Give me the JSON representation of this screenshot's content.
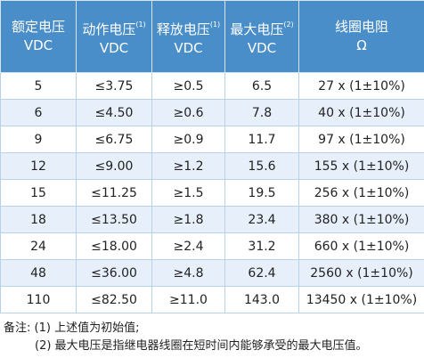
{
  "table": {
    "header": [
      {
        "label": "额定电压",
        "unit": "VDC"
      },
      {
        "label": "动作电压",
        "note": "(1)",
        "unit": "VDC"
      },
      {
        "label": "释放电压",
        "note": "(1)",
        "unit": "VDC"
      },
      {
        "label": "最大电压",
        "note": "(2)",
        "unit": "VDC"
      },
      {
        "label": "线圈电阻",
        "unit": "Ω"
      }
    ],
    "rows": [
      [
        "5",
        "≤3.75",
        "≥0.5",
        "6.5",
        "27 x (1±10%)"
      ],
      [
        "6",
        "≤4.50",
        "≥0.6",
        "7.8",
        "40 x (1±10%)"
      ],
      [
        "9",
        "≤6.75",
        "≥0.9",
        "11.7",
        "97 x (1±10%)"
      ],
      [
        "12",
        "≤9.00",
        "≥1.2",
        "15.6",
        "155 x (1±10%)"
      ],
      [
        "15",
        "≤11.25",
        "≥1.5",
        "19.5",
        "256 x (1±10%)"
      ],
      [
        "18",
        "≤13.50",
        "≥1.8",
        "23.4",
        "380 x (1±10%)"
      ],
      [
        "24",
        "≤18.00",
        "≥2.4",
        "31.2",
        "660 x (1±10%)"
      ],
      [
        "48",
        "≤36.00",
        "≥4.8",
        "62.4",
        "2560 x (1±10%)"
      ],
      [
        "110",
        "≤82.50",
        "≥11.0",
        "143.0",
        "13450 x (1±10%)"
      ]
    ]
  },
  "notes": {
    "label": "备注:",
    "items": [
      "(1) 上述值为初始值;",
      "(2) 最大电压是指继电器线圈在短时间内能够承受的最大电压值。"
    ]
  }
}
